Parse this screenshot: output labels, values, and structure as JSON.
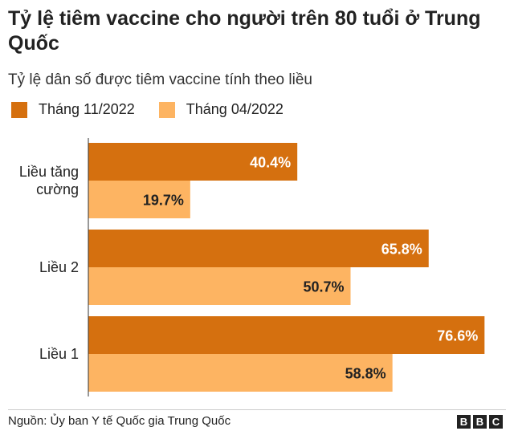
{
  "chart_data": {
    "type": "bar",
    "orientation": "horizontal",
    "title": "Tỷ lệ tiêm vaccine cho người trên 80 tuổi ở Trung Quốc",
    "subtitle": "Tỷ lệ dân số được tiêm vaccine tính theo liều",
    "categories": [
      "Liều tăng cường",
      "Liều 2",
      "Liều 1"
    ],
    "series": [
      {
        "name": "Tháng 11/2022",
        "values": [
          40.4,
          65.8,
          76.6
        ],
        "labels": [
          "40.4%",
          "65.8%",
          "76.6%"
        ],
        "color": "#d5700f"
      },
      {
        "name": "Tháng 04/2022",
        "values": [
          19.7,
          50.7,
          58.8
        ],
        "labels": [
          "19.7%",
          "50.7%",
          "58.8%"
        ],
        "color": "#fdb462"
      }
    ],
    "xlim": [
      0,
      100
    ],
    "grid": false,
    "legend": "top-left"
  },
  "category_lines": [
    [
      "Liều tăng",
      "cường"
    ],
    [
      "Liều 2"
    ],
    [
      "Liều 1"
    ]
  ],
  "source": "Nguồn: Ủy ban Y tế Quốc gia Trung Quốc",
  "logo_letters": [
    "B",
    "B",
    "C"
  ]
}
